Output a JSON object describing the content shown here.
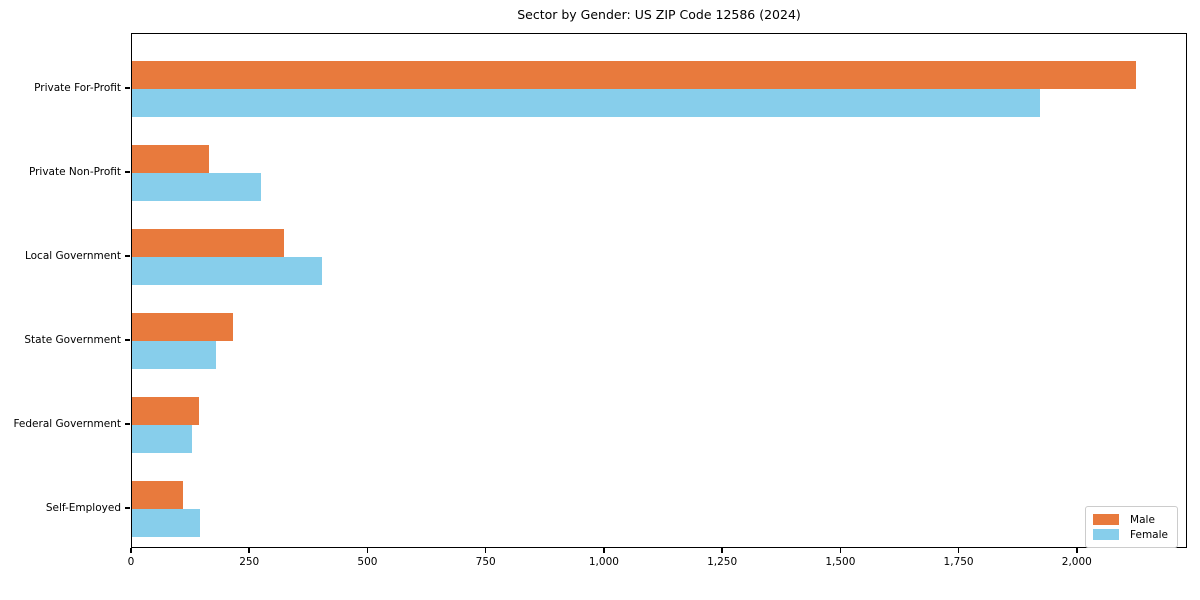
{
  "title": "Sector by Gender: US ZIP Code 12586 (2024)",
  "colors": {
    "male": "#e87a3d",
    "female": "#87ceeb",
    "spine": "#000000",
    "legend_border": "#cccccc"
  },
  "chart_data": {
    "type": "bar",
    "orientation": "horizontal",
    "title": "Sector by Gender: US ZIP Code 12586 (2024)",
    "categories": [
      "Private For-Profit",
      "Private Non-Profit",
      "Local Government",
      "State Government",
      "Federal Government",
      "Self-Employed"
    ],
    "series": [
      {
        "name": "Male",
        "color": "#e87a3d",
        "values": [
          2123,
          163,
          321,
          213,
          141,
          108
        ]
      },
      {
        "name": "Female",
        "color": "#87ceeb",
        "values": [
          1919,
          273,
          402,
          178,
          126,
          144
        ]
      }
    ],
    "xlabel": "",
    "ylabel": "",
    "xlim": [
      0,
      2233
    ],
    "x_tick_values": [
      0,
      250,
      500,
      750,
      1000,
      1250,
      1500,
      1750,
      2000
    ],
    "x_tick_labels": [
      "0",
      "250",
      "500",
      "750",
      "1,000",
      "1,250",
      "1,500",
      "1,750",
      "2,000"
    ],
    "grid": false,
    "legend": {
      "position": "lower right",
      "entries": [
        "Male",
        "Female"
      ]
    }
  }
}
